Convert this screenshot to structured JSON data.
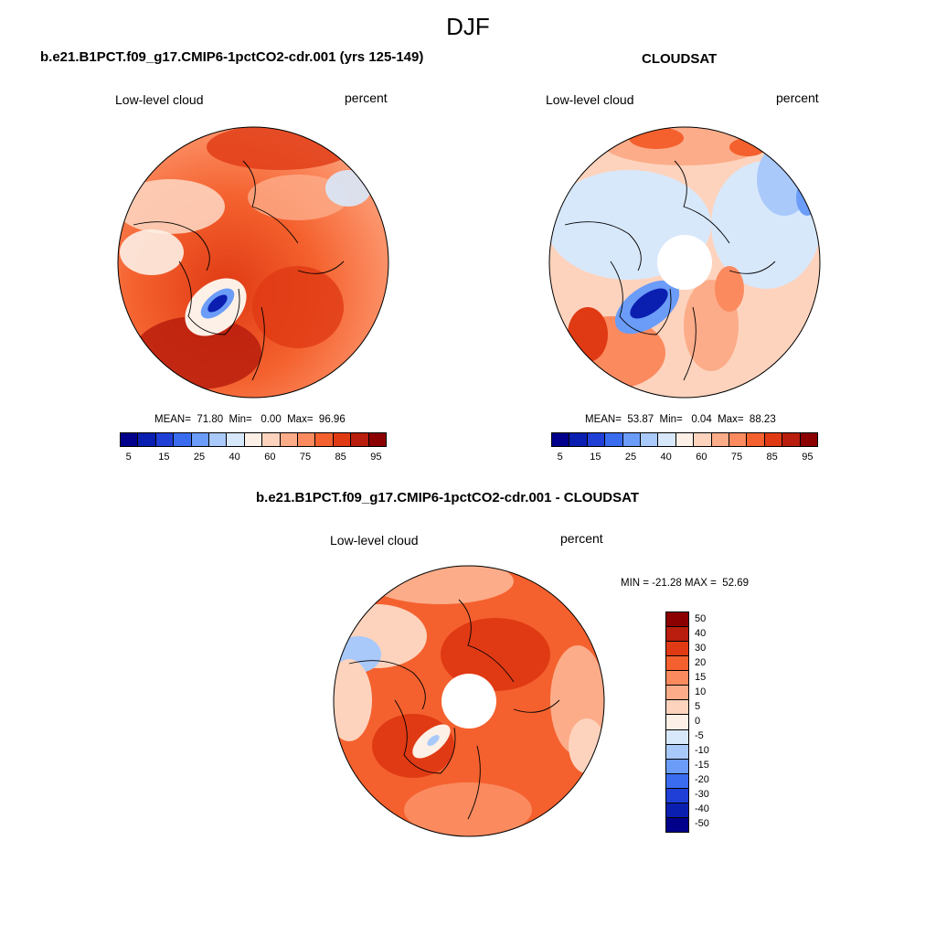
{
  "season": "DJF",
  "panels": [
    {
      "title": "b.e21.B1PCT.f09_g17.CMIP6-1pctCO2-cdr.001 (yrs 125-149)",
      "variable": "Low-level cloud",
      "units": "percent",
      "stats": "MEAN=  71.80  Min=   0.00  Max=  96.96"
    },
    {
      "title": "CLOUDSAT",
      "variable": "Low-level cloud",
      "units": "percent",
      "stats": "MEAN=  53.87  Min=   0.04  Max=  88.23"
    },
    {
      "title": "b.e21.B1PCT.f09_g17.CMIP6-1pctCO2-cdr.001 - CLOUDSAT",
      "variable": "Low-level cloud",
      "units": "percent",
      "stats": "MIN = -21.28 MAX =  52.69"
    }
  ],
  "abs_colorbar": {
    "colors": [
      "#00008b",
      "#0a1fb0",
      "#1f3fd6",
      "#3a6cf0",
      "#6b9cf8",
      "#a9c9fb",
      "#d8e8fb",
      "#fdf0e6",
      "#fdd3bd",
      "#fcac89",
      "#fb8a5f",
      "#f4612e",
      "#e03a14",
      "#b81d0d",
      "#8b0000"
    ],
    "tick_labels": [
      "5",
      "15",
      "25",
      "40",
      "60",
      "75",
      "85",
      "95"
    ]
  },
  "diff_colorbar": {
    "colors": [
      "#8b0000",
      "#b81d0d",
      "#e03a14",
      "#f4612e",
      "#fb8a5f",
      "#fcac89",
      "#fdd3bd",
      "#fdf0e6",
      "#d8e8fb",
      "#a9c9fb",
      "#6b9cf8",
      "#3a6cf0",
      "#1f3fd6",
      "#0a1fb0",
      "#00008b"
    ],
    "tick_labels": [
      "50",
      "40",
      "30",
      "20",
      "15",
      "10",
      "5",
      "0",
      "-5",
      "-10",
      "-15",
      "-20",
      "-30",
      "-40",
      "-50"
    ]
  }
}
